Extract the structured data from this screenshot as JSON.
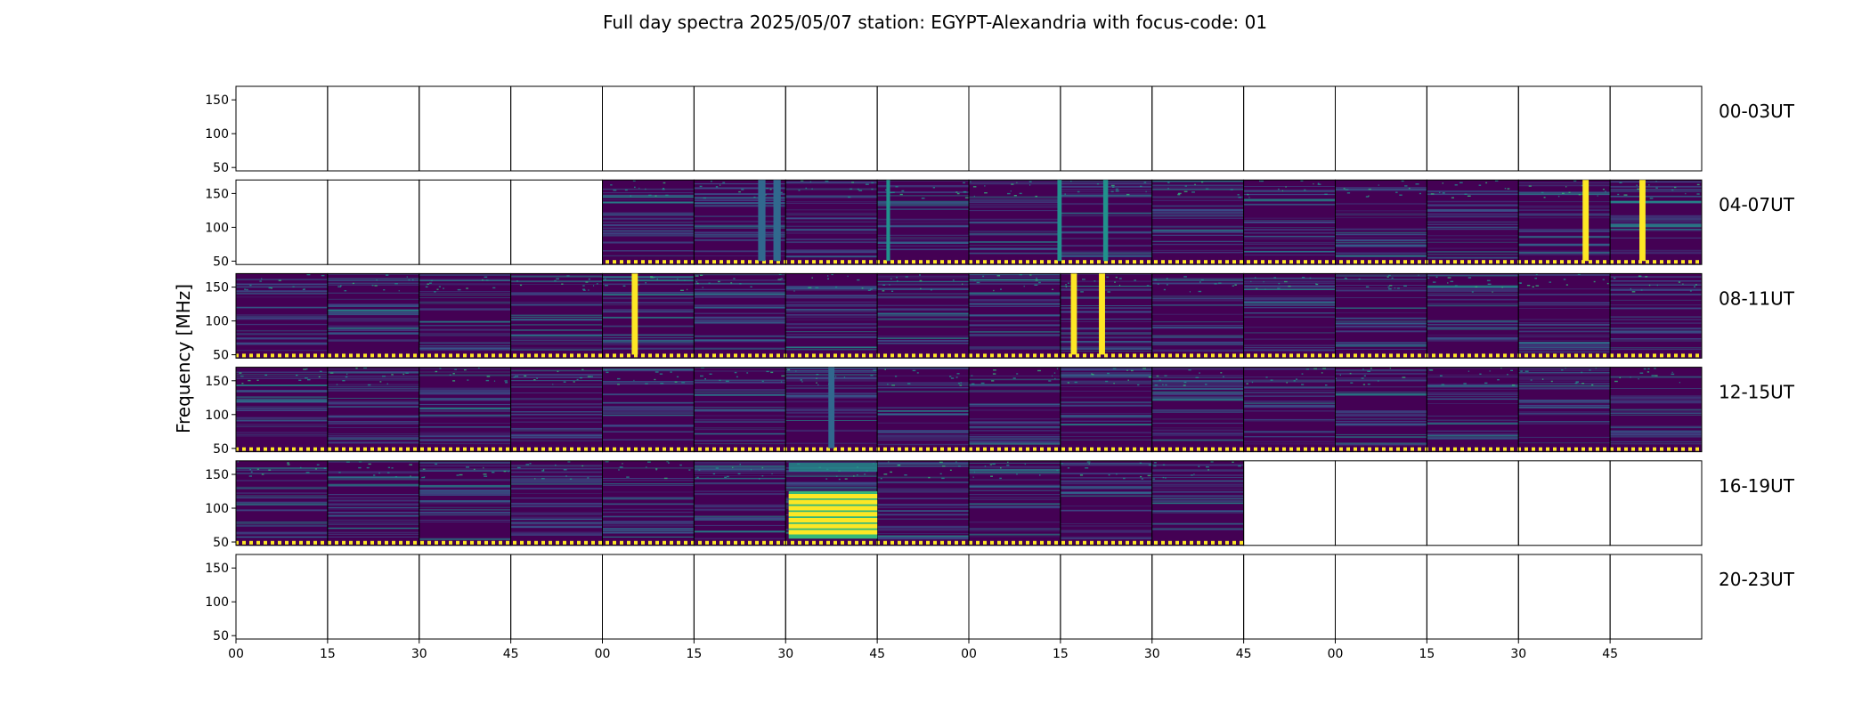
{
  "chart_data": {
    "type": "heatmap",
    "title": "Full day spectra 2025/05/07 station: EGYPT-Alexandria with focus-code: 01",
    "ylabel": "Frequency [MHz]",
    "xlabel": "",
    "ylim": [
      45,
      170
    ],
    "y_ticks": [
      50,
      100,
      150
    ],
    "x_tick_labels": [
      "00",
      "15",
      "30",
      "45",
      "00",
      "15",
      "30",
      "45",
      "00",
      "15",
      "30",
      "45",
      "00",
      "15",
      "30",
      "45"
    ],
    "panels_per_row": 16,
    "panel_minutes": 15,
    "colormap": "viridis",
    "colors": {
      "background": "#ffffff",
      "frame": "#000000",
      "low": "#440154",
      "mid": "#31688e",
      "teal": "#21918c",
      "green": "#35b779",
      "high": "#fde725"
    },
    "rows": [
      {
        "label": "00-03UT",
        "start_hour": 0,
        "data_panels": [],
        "hours_with_marker": [],
        "bursts": []
      },
      {
        "label": "04-07UT",
        "start_hour": 4,
        "data_panels": [
          4,
          5,
          6,
          7,
          8,
          9,
          10,
          11,
          12,
          13,
          14,
          15
        ],
        "bursts": [
          {
            "panel": 14,
            "minute": 10.5,
            "width_min": 1.0,
            "intensity": "high"
          },
          {
            "panel": 15,
            "minute": 4.8,
            "width_min": 1.0,
            "intensity": "high"
          },
          {
            "panel": 9,
            "minute": 7.0,
            "width_min": 0.8,
            "intensity": "teal"
          },
          {
            "panel": 8,
            "minute": 14.5,
            "width_min": 0.7,
            "intensity": "teal"
          },
          {
            "panel": 7,
            "minute": 1.5,
            "width_min": 0.6,
            "intensity": "teal"
          },
          {
            "panel": 5,
            "minute": 10.5,
            "width_min": 1.2,
            "intensity": "mid"
          },
          {
            "panel": 5,
            "minute": 13.0,
            "width_min": 1.2,
            "intensity": "mid"
          }
        ]
      },
      {
        "label": "08-11UT",
        "start_hour": 8,
        "data_panels": [
          0,
          1,
          2,
          3,
          4,
          5,
          6,
          7,
          8,
          9,
          10,
          11,
          12,
          13,
          14,
          15
        ],
        "bursts": [
          {
            "panel": 4,
            "minute": 4.8,
            "width_min": 1.0,
            "intensity": "high"
          },
          {
            "panel": 9,
            "minute": 1.7,
            "width_min": 1.0,
            "intensity": "high"
          },
          {
            "panel": 9,
            "minute": 6.3,
            "width_min": 1.0,
            "intensity": "high"
          }
        ]
      },
      {
        "label": "12-15UT",
        "start_hour": 12,
        "data_panels": [
          0,
          1,
          2,
          3,
          4,
          5,
          6,
          7,
          8,
          9,
          10,
          11,
          12,
          13,
          14,
          15
        ],
        "bursts": [
          {
            "panel": 6,
            "minute": 7.0,
            "width_min": 1.0,
            "intensity": "mid"
          }
        ]
      },
      {
        "label": "16-19UT",
        "start_hour": 16,
        "data_panels": [
          0,
          1,
          2,
          3,
          4,
          5,
          6,
          7,
          8,
          9,
          10
        ],
        "bursts": [
          {
            "panel": 6,
            "minute": 0.5,
            "width_min": 14.5,
            "intensity": "broadband",
            "f_min": 55,
            "f_max": 125
          }
        ]
      },
      {
        "label": "20-23UT",
        "start_hour": 20,
        "data_panels": [],
        "bursts": []
      }
    ]
  }
}
